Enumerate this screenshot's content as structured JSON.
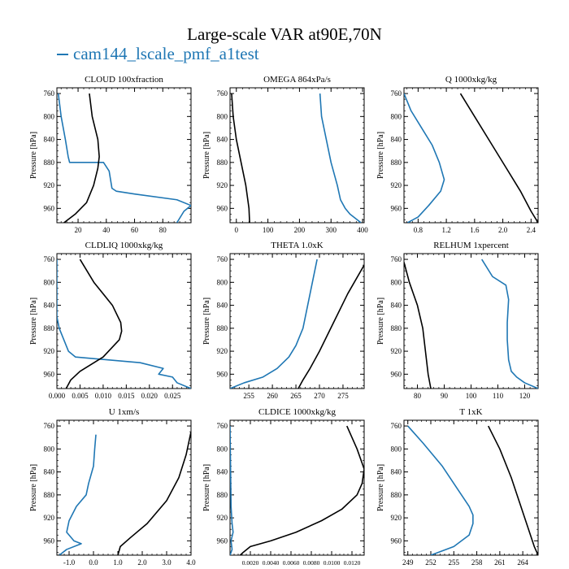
{
  "title": "Large-scale VAR at90E,70N",
  "legend": {
    "label": "cam144_lscale_pmf_a1test",
    "color": "#1f77b4"
  },
  "colors": {
    "series_a": "#1f77b4",
    "series_b": "#000000"
  },
  "chart_data": [
    {
      "type": "line",
      "title": "CLOUD  100xfraction",
      "ylabel": "Pressure [hPa]",
      "xlim": [
        5,
        100
      ],
      "ylim": [
        750,
        985
      ],
      "xticks": [
        20,
        40,
        60,
        80
      ],
      "xtick_labels": [
        "20",
        "40",
        "60",
        "80"
      ],
      "yticks": [
        760,
        800,
        840,
        880,
        920,
        960
      ],
      "ytick_labels": [
        "760",
        "800",
        "840",
        "880",
        "920",
        "960"
      ],
      "series": [
        {
          "color": "#1f77b4",
          "points": [
            [
              6,
              760
            ],
            [
              8,
              800
            ],
            [
              11,
              840
            ],
            [
              13,
              870
            ],
            [
              14,
              880
            ],
            [
              38,
              880
            ],
            [
              42,
              895
            ],
            [
              43,
              910
            ],
            [
              44,
              925
            ],
            [
              47,
              930
            ],
            [
              60,
              935
            ],
            [
              90,
              945
            ],
            [
              100,
              955
            ],
            [
              95,
              965
            ],
            [
              90,
              985
            ]
          ]
        },
        {
          "color": "#000000",
          "points": [
            [
              28,
              760
            ],
            [
              30,
              800
            ],
            [
              34,
              840
            ],
            [
              35,
              870
            ],
            [
              34,
              890
            ],
            [
              31,
              920
            ],
            [
              26,
              950
            ],
            [
              18,
              970
            ],
            [
              10,
              985
            ]
          ]
        }
      ]
    },
    {
      "type": "line",
      "title": "OMEGA  864xPa/s",
      "ylabel": "Pressure [hPa]",
      "xlim": [
        -20,
        405
      ],
      "ylim": [
        750,
        985
      ],
      "xticks": [
        0,
        100,
        200,
        300,
        400
      ],
      "xtick_labels": [
        "0",
        "100",
        "200",
        "300",
        "400"
      ],
      "yticks": [
        760,
        800,
        840,
        880,
        920,
        960
      ],
      "ytick_labels": [
        "760",
        "800",
        "840",
        "880",
        "920",
        "960"
      ],
      "series": [
        {
          "color": "#1f77b4",
          "points": [
            [
              265,
              760
            ],
            [
              270,
              800
            ],
            [
              285,
              840
            ],
            [
              300,
              880
            ],
            [
              320,
              920
            ],
            [
              330,
              945
            ],
            [
              345,
              960
            ],
            [
              360,
              970
            ],
            [
              395,
              985
            ]
          ]
        },
        {
          "color": "#000000",
          "points": [
            [
              -15,
              760
            ],
            [
              -10,
              800
            ],
            [
              0,
              840
            ],
            [
              15,
              880
            ],
            [
              30,
              920
            ],
            [
              40,
              960
            ],
            [
              42,
              985
            ]
          ]
        }
      ]
    },
    {
      "type": "line",
      "title": "Q  1000xkg/kg",
      "ylabel": "Pressure [hPa]",
      "xlim": [
        0.6,
        2.5
      ],
      "ylim": [
        750,
        985
      ],
      "xticks": [
        0.8,
        1.2,
        1.6,
        2.0,
        2.4
      ],
      "xtick_labels": [
        "0.8",
        "1.2",
        "1.6",
        "2.0",
        "2.4"
      ],
      "yticks": [
        760,
        800,
        840,
        880,
        920,
        960
      ],
      "ytick_labels": [
        "760",
        "800",
        "840",
        "880",
        "920",
        "960"
      ],
      "series": [
        {
          "color": "#1f77b4",
          "points": [
            [
              0.6,
              760
            ],
            [
              0.7,
              790
            ],
            [
              0.85,
              820
            ],
            [
              1.0,
              850
            ],
            [
              1.1,
              880
            ],
            [
              1.17,
              910
            ],
            [
              1.12,
              930
            ],
            [
              0.95,
              955
            ],
            [
              0.8,
              975
            ],
            [
              0.65,
              985
            ]
          ]
        },
        {
          "color": "#000000",
          "points": [
            [
              1.4,
              760
            ],
            [
              1.6,
              800
            ],
            [
              1.85,
              850
            ],
            [
              2.05,
              890
            ],
            [
              2.25,
              930
            ],
            [
              2.4,
              965
            ],
            [
              2.5,
              985
            ]
          ]
        }
      ]
    },
    {
      "type": "line",
      "title": "CLDLIQ  1000xkg/kg",
      "ylabel": "Pressure [hPa]",
      "xlim": [
        0,
        0.029
      ],
      "ylim": [
        750,
        985
      ],
      "xticks": [
        0.0,
        0.005,
        0.01,
        0.015,
        0.02,
        0.025
      ],
      "xtick_labels": [
        "0.000",
        "0.005",
        "0.010",
        "0.015",
        "0.020",
        "0.025"
      ],
      "yticks": [
        760,
        800,
        840,
        880,
        920,
        960
      ],
      "ytick_labels": [
        "760",
        "800",
        "840",
        "880",
        "920",
        "960"
      ],
      "series": [
        {
          "color": "#1f77b4",
          "points": [
            [
              0,
              760
            ],
            [
              0,
              860
            ],
            [
              0.0005,
              880
            ],
            [
              0.0015,
              900
            ],
            [
              0.0025,
              920
            ],
            [
              0.004,
              930
            ],
            [
              0.018,
              940
            ],
            [
              0.023,
              950
            ],
            [
              0.022,
              960
            ],
            [
              0.025,
              965
            ],
            [
              0.026,
              975
            ],
            [
              0.029,
              985
            ]
          ]
        },
        {
          "color": "#000000",
          "points": [
            [
              0.005,
              760
            ],
            [
              0.008,
              800
            ],
            [
              0.012,
              840
            ],
            [
              0.0138,
              870
            ],
            [
              0.014,
              885
            ],
            [
              0.0135,
              900
            ],
            [
              0.01,
              930
            ],
            [
              0.005,
              955
            ],
            [
              0.003,
              970
            ],
            [
              0.002,
              985
            ]
          ]
        }
      ]
    },
    {
      "type": "line",
      "title": "THETA  1.0xK",
      "ylabel": "Pressure [hPa]",
      "xlim": [
        251,
        279.5
      ],
      "ylim": [
        750,
        985
      ],
      "xticks": [
        255,
        260,
        265,
        270,
        275
      ],
      "xtick_labels": [
        "255",
        "260",
        "265",
        "270",
        "275"
      ],
      "yticks": [
        760,
        800,
        840,
        880,
        920,
        960
      ],
      "ytick_labels": [
        "760",
        "800",
        "840",
        "880",
        "920",
        "960"
      ],
      "series": [
        {
          "color": "#1f77b4",
          "points": [
            [
              269.5,
              760
            ],
            [
              268.5,
              800
            ],
            [
              267.5,
              840
            ],
            [
              266.5,
              880
            ],
            [
              265,
              910
            ],
            [
              263.5,
              930
            ],
            [
              261,
              950
            ],
            [
              258,
              965
            ],
            [
              254,
              975
            ],
            [
              251,
              985
            ]
          ]
        },
        {
          "color": "#000000",
          "points": [
            [
              279.5,
              770
            ],
            [
              276,
              820
            ],
            [
              273,
              870
            ],
            [
              270,
              920
            ],
            [
              268,
              950
            ],
            [
              266.5,
              970
            ],
            [
              265.5,
              985
            ]
          ]
        }
      ]
    },
    {
      "type": "line",
      "title": "RELHUM  1xpercent",
      "ylabel": "Pressure [hPa]",
      "xlim": [
        75,
        125
      ],
      "ylim": [
        750,
        985
      ],
      "xticks": [
        80,
        90,
        100,
        110,
        120
      ],
      "xtick_labels": [
        "80",
        "90",
        "100",
        "110",
        "120"
      ],
      "yticks": [
        760,
        800,
        840,
        880,
        920,
        960
      ],
      "ytick_labels": [
        "760",
        "800",
        "840",
        "880",
        "920",
        "960"
      ],
      "series": [
        {
          "color": "#1f77b4",
          "points": [
            [
              104,
              760
            ],
            [
              108,
              790
            ],
            [
              113,
              805
            ],
            [
              114,
              830
            ],
            [
              113.5,
              870
            ],
            [
              113.5,
              900
            ],
            [
              114,
              935
            ],
            [
              115,
              955
            ],
            [
              117,
              965
            ],
            [
              120,
              975
            ],
            [
              125,
              985
            ]
          ]
        },
        {
          "color": "#000000",
          "points": [
            [
              75,
              765
            ],
            [
              77,
              800
            ],
            [
              80,
              840
            ],
            [
              82,
              880
            ],
            [
              83,
              920
            ],
            [
              84,
              960
            ],
            [
              85,
              985
            ]
          ]
        }
      ]
    },
    {
      "type": "line",
      "title": "U  1xm/s",
      "ylabel": "Pressure [hPa]",
      "xlim": [
        -1.5,
        4.0
      ],
      "ylim": [
        750,
        985
      ],
      "xticks": [
        -1.0,
        0.0,
        1.0,
        2.0,
        3.0,
        4.0
      ],
      "xtick_labels": [
        "-1.0",
        "0.0",
        "1.0",
        "2.0",
        "3.0",
        "4.0"
      ],
      "yticks": [
        760,
        800,
        840,
        880,
        920,
        960
      ],
      "ytick_labels": [
        "760",
        "800",
        "840",
        "880",
        "920",
        "960"
      ],
      "series": [
        {
          "color": "#1f77b4",
          "points": [
            [
              0.1,
              775
            ],
            [
              0.05,
              800
            ],
            [
              0,
              830
            ],
            [
              -0.2,
              860
            ],
            [
              -0.3,
              880
            ],
            [
              -0.7,
              900
            ],
            [
              -1.0,
              925
            ],
            [
              -1.1,
              945
            ],
            [
              -0.8,
              960
            ],
            [
              -0.5,
              965
            ],
            [
              -1.1,
              975
            ],
            [
              -1.4,
              985
            ]
          ]
        },
        {
          "color": "#000000",
          "points": [
            [
              4.0,
              770
            ],
            [
              3.8,
              810
            ],
            [
              3.5,
              850
            ],
            [
              3.0,
              890
            ],
            [
              2.2,
              930
            ],
            [
              1.5,
              955
            ],
            [
              1.1,
              970
            ],
            [
              1.0,
              985
            ]
          ]
        }
      ]
    },
    {
      "type": "line",
      "title": "CLDICE  1000xkg/kg",
      "ylabel": "Pressure [hPa]",
      "xlim": [
        0,
        0.0132
      ],
      "ylim": [
        750,
        985
      ],
      "xticks": [
        0.002,
        0.004,
        0.006,
        0.008,
        0.01,
        0.012
      ],
      "xtick_labels": [
        "0.0020",
        "0.0040",
        "0.0060",
        "0.0080",
        "0.0100",
        "0.0120"
      ],
      "yticks": [
        760,
        800,
        840,
        880,
        920,
        960
      ],
      "ytick_labels": [
        "760",
        "800",
        "840",
        "880",
        "920",
        "960"
      ],
      "series": [
        {
          "color": "#1f77b4",
          "points": [
            [
              0,
              760
            ],
            [
              0.0001,
              900
            ],
            [
              0.0002,
              930
            ],
            [
              0.0003,
              945
            ],
            [
              0.0001,
              960
            ],
            [
              0.0002,
              975
            ],
            [
              0,
              985
            ]
          ]
        },
        {
          "color": "#000000",
          "points": [
            [
              0.0115,
              760
            ],
            [
              0.0125,
              800
            ],
            [
              0.0132,
              835
            ],
            [
              0.013,
              860
            ],
            [
              0.0125,
              880
            ],
            [
              0.011,
              905
            ],
            [
              0.009,
              925
            ],
            [
              0.0065,
              945
            ],
            [
              0.004,
              960
            ],
            [
              0.002,
              970
            ],
            [
              0.0013,
              980
            ],
            [
              0.001,
              985
            ]
          ]
        }
      ]
    },
    {
      "type": "line",
      "title": "T  1xK",
      "ylabel": "Pressure [hPa]",
      "xlim": [
        248.5,
        266
      ],
      "ylim": [
        750,
        985
      ],
      "xticks": [
        249,
        252,
        255,
        258,
        261,
        264
      ],
      "xtick_labels": [
        "249",
        "252",
        "255",
        "258",
        "261",
        "264"
      ],
      "yticks": [
        760,
        800,
        840,
        880,
        920,
        960
      ],
      "ytick_labels": [
        "760",
        "800",
        "840",
        "880",
        "920",
        "960"
      ],
      "series": [
        {
          "color": "#1f77b4",
          "points": [
            [
              249,
              760
            ],
            [
              251,
              790
            ],
            [
              253.5,
              830
            ],
            [
              255.5,
              870
            ],
            [
              257,
              900
            ],
            [
              257.5,
              915
            ],
            [
              257.5,
              930
            ],
            [
              257,
              950
            ],
            [
              255,
              970
            ],
            [
              252,
              985
            ]
          ]
        },
        {
          "color": "#000000",
          "points": [
            [
              259.5,
              760
            ],
            [
              261,
              800
            ],
            [
              262.5,
              850
            ],
            [
              263.5,
              890
            ],
            [
              264.5,
              930
            ],
            [
              265.5,
              970
            ],
            [
              266,
              985
            ]
          ]
        }
      ]
    }
  ]
}
